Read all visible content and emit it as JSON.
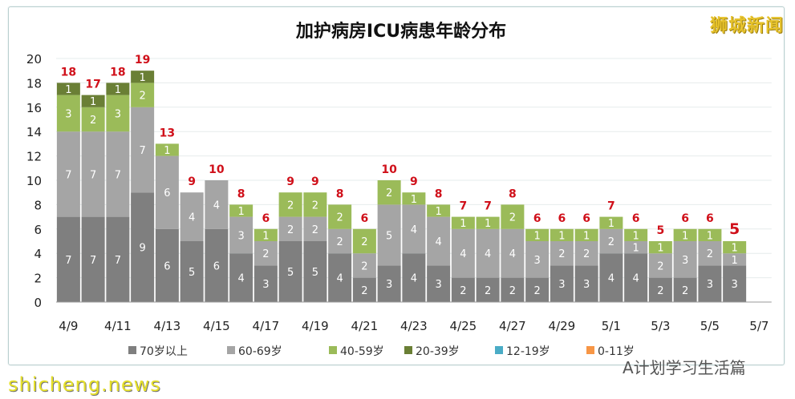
{
  "chart_data": {
    "type": "bar",
    "stacked": true,
    "title": "加护病房ICU病患年龄分布",
    "categories": [
      "4/9",
      "4/10",
      "4/11",
      "4/12",
      "4/13",
      "4/14",
      "4/15",
      "4/16",
      "4/17",
      "4/18",
      "4/19",
      "4/20",
      "4/21",
      "4/22",
      "4/23",
      "4/24",
      "4/25",
      "4/26",
      "4/27",
      "4/28",
      "4/29",
      "4/30",
      "5/1",
      "5/2",
      "5/3",
      "5/4",
      "5/5",
      "5/6",
      "5/7"
    ],
    "x_tick_labels": [
      "4/9",
      "4/11",
      "4/13",
      "4/15",
      "4/17",
      "4/19",
      "4/21",
      "4/23",
      "4/25",
      "4/27",
      "4/29",
      "5/1",
      "5/3",
      "5/5",
      "5/7"
    ],
    "y_ticks": [
      0,
      2,
      4,
      6,
      8,
      10,
      12,
      14,
      16,
      18,
      20
    ],
    "ylim": [
      0,
      20
    ],
    "grid": true,
    "legend_position": "bottom",
    "series": [
      {
        "name": "70岁以上",
        "color": "#7f7f7f",
        "values": [
          7,
          7,
          7,
          9,
          6,
          5,
          6,
          4,
          3,
          5,
          5,
          4,
          2,
          3,
          4,
          3,
          2,
          2,
          2,
          2,
          3,
          3,
          4,
          4,
          2,
          2,
          3,
          3,
          null
        ]
      },
      {
        "name": "60-69岁",
        "color": "#a5a5a5",
        "values": [
          7,
          7,
          7,
          7,
          6,
          4,
          4,
          3,
          2,
          2,
          2,
          2,
          2,
          5,
          4,
          4,
          4,
          4,
          4,
          3,
          2,
          2,
          2,
          1,
          2,
          3,
          2,
          1,
          null
        ]
      },
      {
        "name": "40-59岁",
        "color": "#9bbb59",
        "values": [
          3,
          2,
          3,
          2,
          1,
          0,
          0,
          1,
          1,
          2,
          2,
          2,
          2,
          2,
          1,
          1,
          1,
          1,
          2,
          1,
          1,
          1,
          1,
          1,
          1,
          1,
          1,
          1,
          null
        ]
      },
      {
        "name": "20-39岁",
        "color": "#6a7f35",
        "values": [
          1,
          1,
          1,
          1,
          0,
          0,
          0,
          0,
          0,
          0,
          0,
          0,
          0,
          0,
          0,
          0,
          0,
          0,
          0,
          0,
          0,
          0,
          0,
          0,
          0,
          0,
          0,
          0,
          null
        ]
      },
      {
        "name": "12-19岁",
        "color": "#4aacc6",
        "values": [
          0,
          0,
          0,
          0,
          0,
          0,
          0,
          0,
          0,
          0,
          0,
          0,
          0,
          0,
          0,
          0,
          0,
          0,
          0,
          0,
          0,
          0,
          0,
          0,
          0,
          0,
          0,
          0,
          null
        ]
      },
      {
        "name": "0-11岁",
        "color": "#f79646",
        "values": [
          0,
          0,
          0,
          0,
          0,
          0,
          0,
          0,
          0,
          0,
          0,
          0,
          0,
          0,
          0,
          0,
          0,
          0,
          0,
          0,
          0,
          0,
          0,
          0,
          0,
          0,
          0,
          0,
          null
        ]
      }
    ],
    "totals": [
      18,
      17,
      18,
      19,
      13,
      9,
      10,
      8,
      6,
      9,
      9,
      8,
      6,
      10,
      9,
      8,
      7,
      7,
      8,
      6,
      6,
      6,
      7,
      6,
      5,
      6,
      6,
      5,
      null
    ],
    "total_label_color": "#d0101a"
  },
  "watermarks": {
    "top_right": "狮城新闻",
    "bottom_right": "A计划学习生活篇",
    "bottom_left": "shicheng.news"
  }
}
